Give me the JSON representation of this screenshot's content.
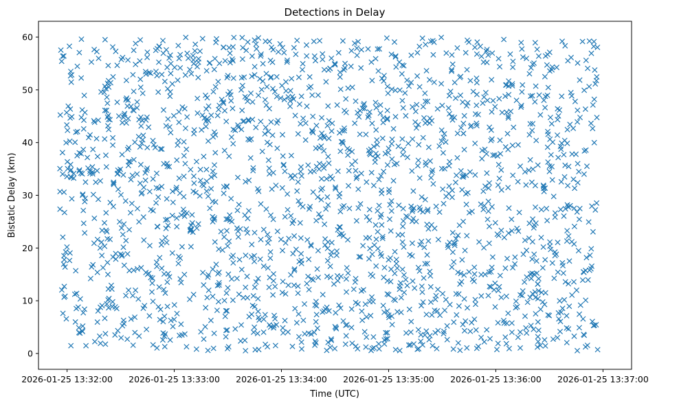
{
  "chart_data": {
    "type": "scatter",
    "title": "Detections in Delay",
    "xlabel": "Time (UTC)",
    "ylabel": "Bistatic Delay (km)",
    "marker": "x",
    "color": "#1f77b4",
    "grid": false,
    "x_unit": "seconds since 2026-01-25 13:32:00 UTC",
    "xlim": [
      -16,
      316
    ],
    "ylim": [
      -3,
      63
    ],
    "x_ticks": [
      {
        "value": 0,
        "label": "2026-01-25 13:32:00"
      },
      {
        "value": 60,
        "label": "2026-01-25 13:33:00"
      },
      {
        "value": 120,
        "label": "2026-01-25 13:34:00"
      },
      {
        "value": 180,
        "label": "2026-01-25 13:35:00"
      },
      {
        "value": 240,
        "label": "2026-01-25 13:36:00"
      },
      {
        "value": 300,
        "label": "2026-01-25 13:37:00"
      }
    ],
    "y_ticks": [
      {
        "value": 0,
        "label": "0"
      },
      {
        "value": 10,
        "label": "10"
      },
      {
        "value": 20,
        "label": "20"
      },
      {
        "value": 30,
        "label": "30"
      },
      {
        "value": 40,
        "label": "40"
      },
      {
        "value": 50,
        "label": "50"
      },
      {
        "value": 60,
        "label": "60"
      }
    ],
    "series": [
      {
        "name": "detections",
        "description": "Dense uniform cloud of ~2000 detections spanning 13:31:56 to 13:36:57, delay 0.5 to 60 km",
        "x_range": [
          -4,
          297
        ],
        "y_range": [
          0.5,
          60
        ],
        "point_count": 2000,
        "seed": 12345
      }
    ]
  }
}
